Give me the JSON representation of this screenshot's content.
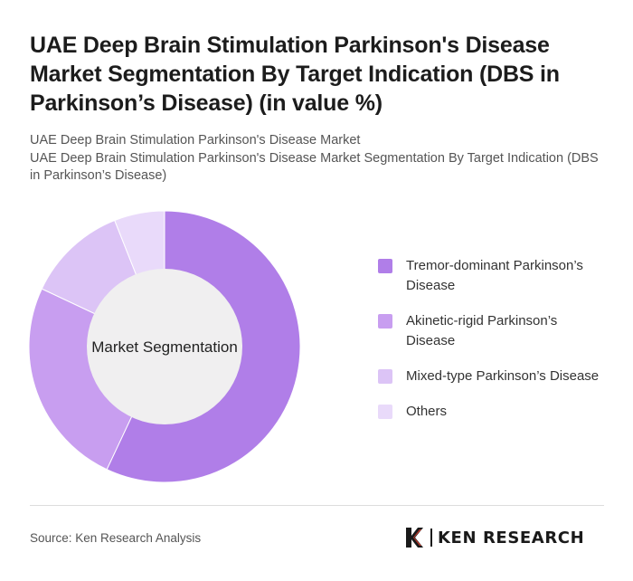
{
  "header": {
    "title": "UAE Deep Brain Stimulation Parkinson's Disease Market Segmentation By Target Indication (DBS in Parkinson’s Disease) (in value %)",
    "subtitle_line1": "UAE Deep Brain Stimulation Parkinson's Disease Market",
    "subtitle_line2": "UAE Deep Brain Stimulation Parkinson's Disease Market Segmentation By Target Indication (DBS in Parkinson’s Disease)"
  },
  "chart_data": {
    "type": "pie",
    "variant": "donut",
    "center_label": "Market Segmentation",
    "legend_position": "right",
    "slices": [
      {
        "label": "Tremor-dominant Parkinson’s Disease",
        "value": 57,
        "color": "#b07ee8"
      },
      {
        "label": "Akinetic-rigid Parkinson’s Disease",
        "value": 25,
        "color": "#c89ef0"
      },
      {
        "label": "Mixed-type Parkinson’s Disease",
        "value": 12,
        "color": "#dcc4f6"
      },
      {
        "label": "Others",
        "value": 6,
        "color": "#e9dafa"
      }
    ],
    "center_color": "#f0eff0"
  },
  "footer": {
    "source": "Source: Ken Research Analysis",
    "logo_text": "KEN RESEARCH"
  }
}
